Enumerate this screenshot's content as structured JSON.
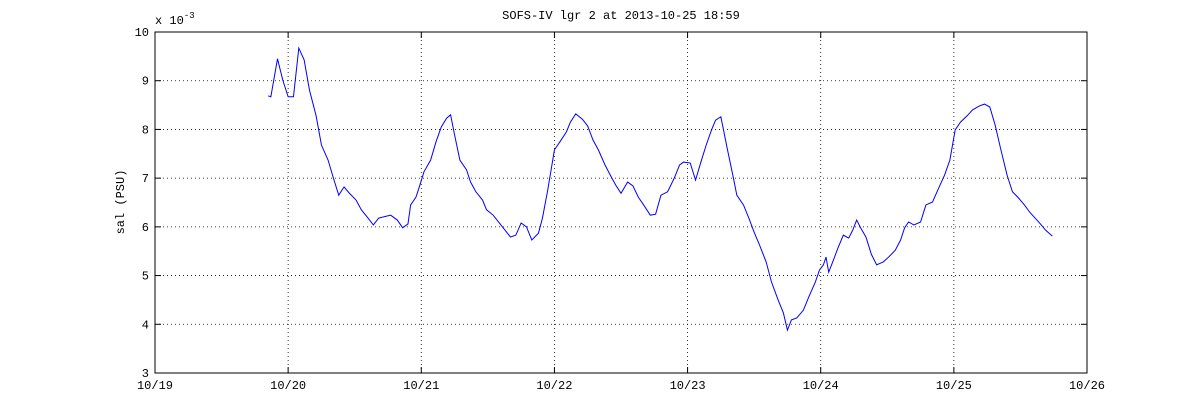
{
  "chart_data": {
    "type": "line",
    "title": "SOFS-IV lgr 2 at 2013-10-25 18:59",
    "y_label": "sal (PSU)",
    "y_multiplier": {
      "base": "x 10",
      "exponent": "-3"
    },
    "x": [
      19.85,
      19.87,
      19.92,
      19.96,
      20.0,
      20.04,
      20.08,
      20.12,
      20.16,
      20.21,
      20.25,
      20.3,
      20.34,
      20.38,
      20.42,
      20.46,
      20.51,
      20.55,
      20.6,
      20.64,
      20.68,
      20.74,
      20.77,
      20.82,
      20.86,
      20.9,
      20.92,
      20.96,
      20.99,
      21.02,
      21.07,
      21.11,
      21.15,
      21.19,
      21.22,
      21.25,
      21.29,
      21.34,
      21.37,
      21.41,
      21.46,
      21.49,
      21.54,
      21.58,
      21.63,
      21.67,
      21.71,
      21.75,
      21.79,
      21.83,
      21.88,
      21.91,
      21.95,
      22.0,
      22.04,
      22.09,
      22.12,
      22.16,
      22.21,
      22.25,
      22.29,
      22.33,
      22.38,
      22.42,
      22.46,
      22.5,
      22.55,
      22.59,
      22.63,
      22.67,
      22.72,
      22.76,
      22.8,
      22.85,
      22.9,
      22.94,
      22.97,
      23.02,
      23.06,
      23.1,
      23.14,
      23.18,
      23.21,
      23.25,
      23.3,
      23.34,
      23.37,
      23.42,
      23.46,
      23.5,
      23.54,
      23.59,
      23.63,
      23.68,
      23.72,
      23.75,
      23.78,
      23.82,
      23.87,
      23.91,
      23.96,
      23.99,
      24.02,
      24.04,
      24.06,
      24.09,
      24.13,
      24.17,
      24.21,
      24.24,
      24.27,
      24.3,
      24.34,
      24.38,
      24.42,
      24.47,
      24.51,
      24.56,
      24.6,
      24.63,
      24.66,
      24.7,
      24.75,
      24.79,
      24.84,
      24.88,
      24.93,
      24.97,
      25.01,
      25.05,
      25.1,
      25.14,
      25.19,
      25.23,
      25.27,
      25.31,
      25.35,
      25.4,
      25.44,
      25.48,
      25.53,
      25.57,
      25.61,
      25.65,
      25.69,
      25.74
    ],
    "series": [
      {
        "color": "#0000ff",
        "values": [
          8.69,
          8.67,
          9.45,
          9.01,
          8.67,
          8.67,
          9.67,
          9.43,
          8.81,
          8.28,
          7.68,
          7.37,
          7.0,
          6.65,
          6.82,
          6.69,
          6.55,
          6.35,
          6.18,
          6.04,
          6.18,
          6.22,
          6.24,
          6.14,
          5.98,
          6.06,
          6.45,
          6.61,
          6.86,
          7.13,
          7.37,
          7.74,
          8.05,
          8.23,
          8.3,
          7.89,
          7.37,
          7.17,
          6.92,
          6.72,
          6.55,
          6.35,
          6.24,
          6.1,
          5.93,
          5.79,
          5.83,
          6.08,
          6.0,
          5.73,
          5.87,
          6.18,
          6.76,
          7.58,
          7.74,
          7.95,
          8.15,
          8.32,
          8.21,
          8.07,
          7.78,
          7.58,
          7.27,
          7.06,
          6.86,
          6.69,
          6.92,
          6.84,
          6.61,
          6.45,
          6.24,
          6.26,
          6.65,
          6.72,
          7.0,
          7.27,
          7.33,
          7.31,
          6.96,
          7.33,
          7.68,
          7.99,
          8.19,
          8.26,
          7.58,
          7.06,
          6.65,
          6.45,
          6.18,
          5.89,
          5.63,
          5.28,
          4.87,
          4.5,
          4.23,
          3.88,
          4.09,
          4.13,
          4.29,
          4.56,
          4.87,
          5.11,
          5.22,
          5.38,
          5.07,
          5.28,
          5.57,
          5.83,
          5.77,
          5.93,
          6.14,
          5.98,
          5.79,
          5.44,
          5.22,
          5.28,
          5.38,
          5.52,
          5.73,
          5.98,
          6.1,
          6.04,
          6.1,
          6.45,
          6.51,
          6.76,
          7.06,
          7.37,
          7.99,
          8.15,
          8.28,
          8.4,
          8.48,
          8.52,
          8.46,
          8.09,
          7.62,
          7.06,
          6.72,
          6.61,
          6.45,
          6.3,
          6.18,
          6.06,
          5.93,
          5.81
        ]
      }
    ],
    "xlim": [
      19,
      26
    ],
    "xticks": [
      {
        "value": 19,
        "label": "10/19"
      },
      {
        "value": 20,
        "label": "10/20"
      },
      {
        "value": 21,
        "label": "10/21"
      },
      {
        "value": 22,
        "label": "10/22"
      },
      {
        "value": 23,
        "label": "10/23"
      },
      {
        "value": 24,
        "label": "10/24"
      },
      {
        "value": 25,
        "label": "10/25"
      },
      {
        "value": 26,
        "label": "10/26"
      }
    ],
    "ylim": [
      3,
      10
    ],
    "yticks": [
      3,
      4,
      5,
      6,
      7,
      8,
      9,
      10
    ],
    "grid": true
  }
}
